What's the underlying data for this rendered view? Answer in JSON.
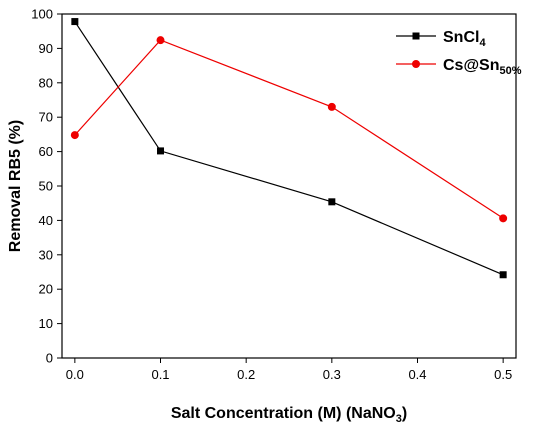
{
  "chart_data": {
    "type": "line",
    "title": "",
    "xlabel": "Salt Concentration (M) (NaNO",
    "xlabel_sub": "3",
    "xlabel_end": ")",
    "ylabel": "Removal RB5 (%)",
    "xlim": [
      -0.015,
      0.515
    ],
    "ylim": [
      0,
      100
    ],
    "xticks": [
      "0.0",
      "0.1",
      "0.2",
      "0.3",
      "0.4",
      "0.5"
    ],
    "xtick_values": [
      0.0,
      0.1,
      0.2,
      0.3,
      0.4,
      0.5
    ],
    "yticks": [
      "0",
      "10",
      "20",
      "30",
      "40",
      "50",
      "60",
      "70",
      "80",
      "90",
      "100"
    ],
    "ytick_values": [
      0,
      10,
      20,
      30,
      40,
      50,
      60,
      70,
      80,
      90,
      100
    ],
    "grid": false,
    "legend_position": "top-right",
    "series": [
      {
        "name": "SnCl",
        "name_sub": "4",
        "color": "#000000",
        "marker": "square",
        "x": [
          0.0,
          0.1,
          0.3,
          0.5
        ],
        "y": [
          97.8,
          60.2,
          45.4,
          24.2
        ]
      },
      {
        "name": "Cs@Sn",
        "name_sub": "50%",
        "color": "#ee0000",
        "marker": "circle",
        "x": [
          0.0,
          0.1,
          0.3,
          0.5
        ],
        "y": [
          64.8,
          92.4,
          73.0,
          40.6
        ]
      }
    ]
  }
}
